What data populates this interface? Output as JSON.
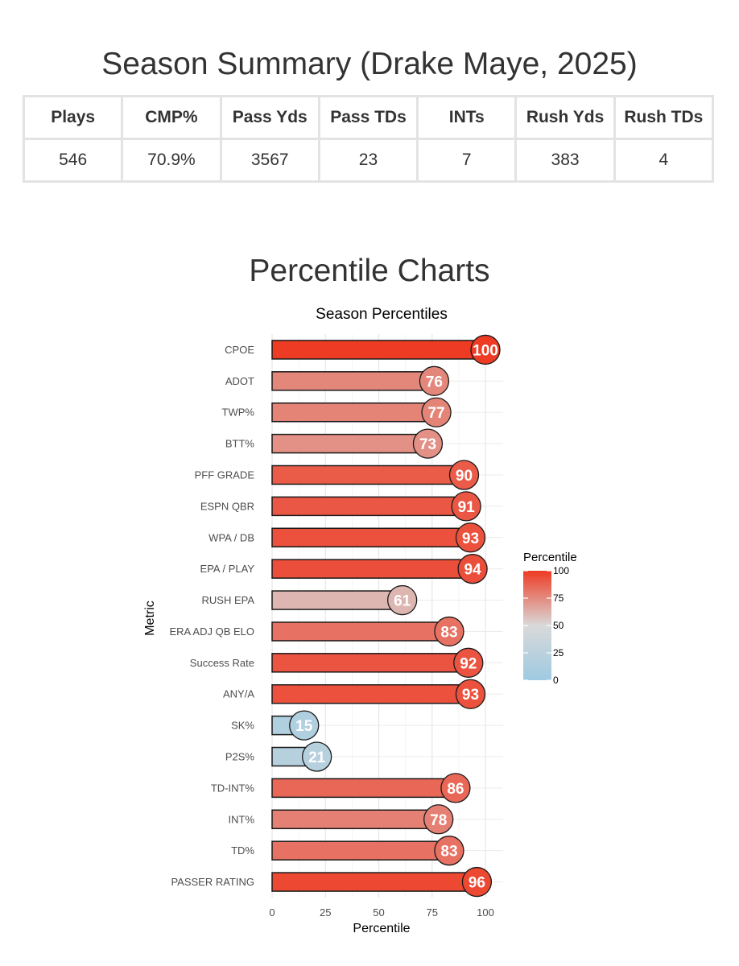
{
  "summary": {
    "title": "Season Summary (Drake Maye, 2025)",
    "headers": [
      "Plays",
      "CMP%",
      "Pass Yds",
      "Pass TDs",
      "INTs",
      "Rush Yds",
      "Rush TDs"
    ],
    "values": [
      "546",
      "70.9%",
      "3567",
      "23",
      "7",
      "383",
      "4"
    ]
  },
  "section_title": "Percentile Charts",
  "chart_data": {
    "type": "bar",
    "orientation": "horizontal",
    "title": "Season Percentiles",
    "xlabel": "Percentile",
    "ylabel": "Metric",
    "xlim": [
      0,
      100
    ],
    "xticks": [
      "0",
      "25",
      "50",
      "75",
      "100"
    ],
    "grid": true,
    "categories": [
      "CPOE",
      "ADOT",
      "TWP%",
      "BTT%",
      "PFF GRADE",
      "ESPN QBR",
      "WPA / DB",
      "EPA / PLAY",
      "RUSH EPA",
      "ERA ADJ QB ELO",
      "Success Rate",
      "ANY/A",
      "SK%",
      "P2S%",
      "TD-INT%",
      "INT%",
      "TD%",
      "PASSER RATING"
    ],
    "values": [
      100,
      76,
      77,
      73,
      90,
      91,
      93,
      94,
      61,
      83,
      92,
      93,
      15,
      21,
      86,
      78,
      83,
      96
    ],
    "colorscale": {
      "low": "#9ecae1",
      "mid": "#d9d9d9",
      "high": "#ee3b24"
    },
    "legend": {
      "title": "Percentile",
      "ticks": [
        "100",
        "75",
        "50",
        "25",
        "0"
      ],
      "position": "right"
    }
  }
}
